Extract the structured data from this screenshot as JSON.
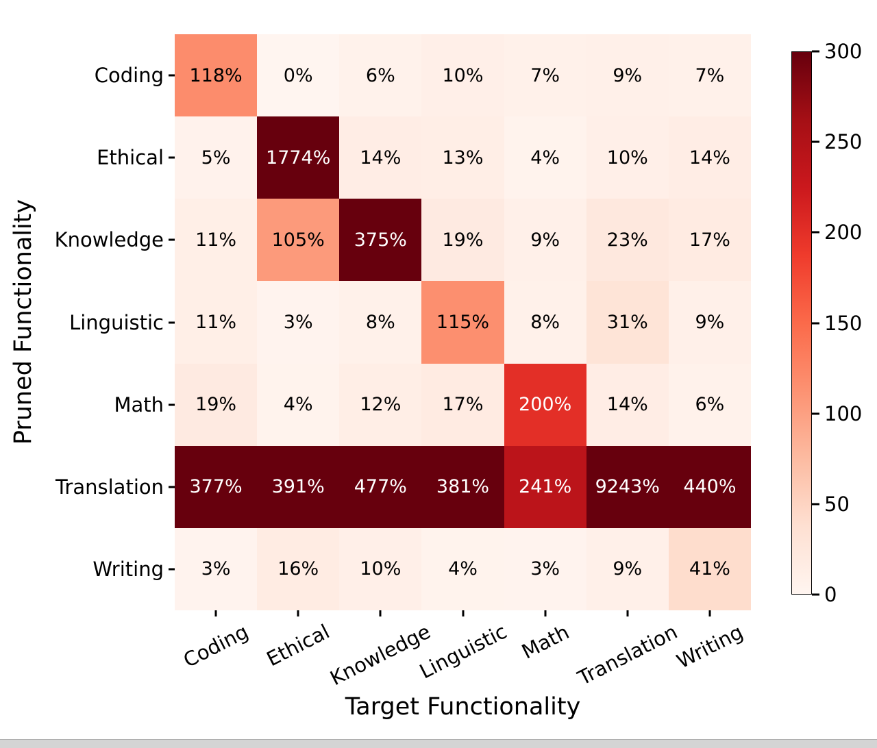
{
  "chart_data": {
    "type": "heatmap",
    "title": "",
    "xlabel": "Target Functionality",
    "ylabel": "Pruned Functionality",
    "x_categories": [
      "Coding",
      "Ethical",
      "Knowledge",
      "Linguistic",
      "Math",
      "Translation",
      "Writing"
    ],
    "y_categories": [
      "Coding",
      "Ethical",
      "Knowledge",
      "Linguistic",
      "Math",
      "Translation",
      "Writing"
    ],
    "values": [
      [
        118,
        0,
        6,
        10,
        7,
        9,
        7
      ],
      [
        5,
        1774,
        14,
        13,
        4,
        10,
        14
      ],
      [
        11,
        105,
        375,
        19,
        9,
        23,
        17
      ],
      [
        11,
        3,
        8,
        115,
        8,
        31,
        9
      ],
      [
        19,
        4,
        12,
        17,
        200,
        14,
        6
      ],
      [
        377,
        391,
        477,
        381,
        241,
        9243,
        440
      ],
      [
        3,
        16,
        10,
        4,
        3,
        9,
        41
      ]
    ],
    "cell_suffix": "%",
    "vmin": 0,
    "vmax": 300,
    "colorbar_ticks": [
      0,
      50,
      100,
      150,
      200,
      250,
      300
    ],
    "colormap": "Reds",
    "colormap_stops": [
      "#fff5f0",
      "#fee0d2",
      "#fcbba1",
      "#fc9272",
      "#fb6a4a",
      "#ef3b2c",
      "#cb181d",
      "#a50f15",
      "#67000d"
    ],
    "cell_text_dark": "#000000",
    "cell_text_light": "#ffffff",
    "text_light_threshold": 0.5,
    "grid": false,
    "legend_position": "colorbar-right"
  }
}
